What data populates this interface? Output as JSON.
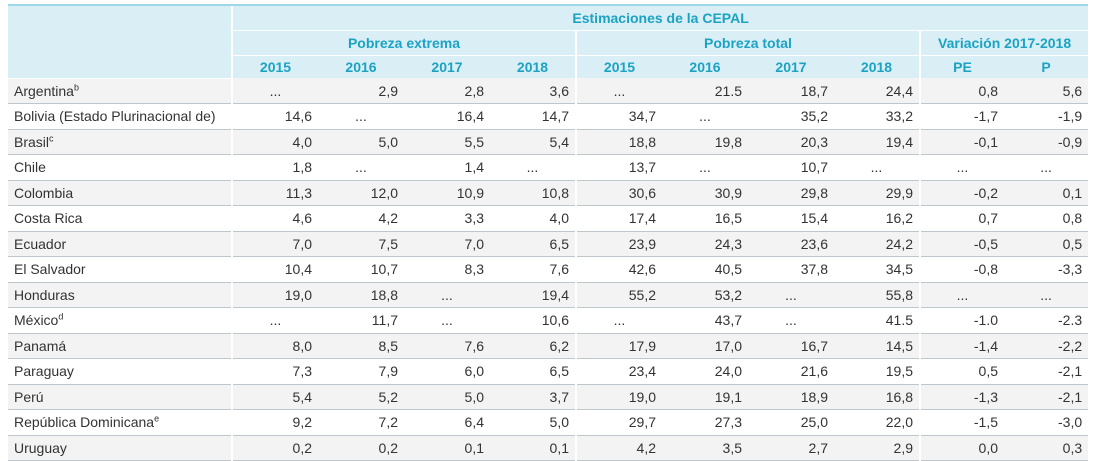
{
  "header": {
    "super_title": "Estimaciones de la CEPAL",
    "groups": [
      {
        "label": "Pobreza extrema"
      },
      {
        "label": "Pobreza total"
      },
      {
        "label": "Variación 2017-2018"
      }
    ],
    "years": [
      "2015",
      "2016",
      "2017",
      "2018",
      "2015",
      "2016",
      "2017",
      "2018",
      "PE",
      "P"
    ]
  },
  "rows": [
    {
      "country": "Argentina",
      "note": "b",
      "values": [
        "...",
        "2,9",
        "2,8",
        "3,6",
        "...",
        "21.5",
        "18,7",
        "24,4",
        "0,8",
        "5,6"
      ]
    },
    {
      "country": "Bolivia (Estado Plurinacional de)",
      "note": "",
      "values": [
        "14,6",
        "...",
        "16,4",
        "14,7",
        "34,7",
        "...",
        "35,2",
        "33,2",
        "-1,7",
        "-1,9"
      ]
    },
    {
      "country": "Brasil",
      "note": "c",
      "values": [
        "4,0",
        "5,0",
        "5,5",
        "5,4",
        "18,8",
        "19,8",
        "20,3",
        "19,4",
        "-0,1",
        "-0,9"
      ]
    },
    {
      "country": "Chile",
      "note": "",
      "values": [
        "1,8",
        "...",
        "1,4",
        "...",
        "13,7",
        "...",
        "10,7",
        "...",
        "...",
        "..."
      ]
    },
    {
      "country": "Colombia",
      "note": "",
      "values": [
        "11,3",
        "12,0",
        "10,9",
        "10,8",
        "30,6",
        "30,9",
        "29,8",
        "29,9",
        "-0,2",
        "0,1"
      ]
    },
    {
      "country": "Costa Rica",
      "note": "",
      "values": [
        "4,6",
        "4,2",
        "3,3",
        "4,0",
        "17,4",
        "16,5",
        "15,4",
        "16,2",
        "0,7",
        "0,8"
      ]
    },
    {
      "country": "Ecuador",
      "note": "",
      "values": [
        "7,0",
        "7,5",
        "7,0",
        "6,5",
        "23,9",
        "24,3",
        "23,6",
        "24,2",
        "-0,5",
        "0,5"
      ]
    },
    {
      "country": "El Salvador",
      "note": "",
      "values": [
        "10,4",
        "10,7",
        "8,3",
        "7,6",
        "42,6",
        "40,5",
        "37,8",
        "34,5",
        "-0,8",
        "-3,3"
      ]
    },
    {
      "country": "Honduras",
      "note": "",
      "values": [
        "19,0",
        "18,8",
        "...",
        "19,4",
        "55,2",
        "53,2",
        "...",
        "55,8",
        "...",
        "..."
      ]
    },
    {
      "country": "México",
      "note": "d",
      "values": [
        "...",
        "11,7",
        "...",
        "10,6",
        "...",
        "43,7",
        "...",
        "41.5",
        "-1.0",
        "-2.3"
      ]
    },
    {
      "country": "Panamá",
      "note": "",
      "values": [
        "8,0",
        "8,5",
        "7,6",
        "6,2",
        "17,9",
        "17,0",
        "16,7",
        "14,5",
        "-1,4",
        "-2,2"
      ]
    },
    {
      "country": "Paraguay",
      "note": "",
      "values": [
        "7,3",
        "7,9",
        "6,0",
        "6,5",
        "23,4",
        "24,0",
        "21,6",
        "19,5",
        "0,5",
        "-2,1"
      ]
    },
    {
      "country": "Perú",
      "note": "",
      "values": [
        "5,4",
        "5,2",
        "5,0",
        "3,7",
        "19,0",
        "19,1",
        "18,9",
        "16,8",
        "-1,3",
        "-2,1"
      ]
    },
    {
      "country": "República Dominicana",
      "note": "e",
      "values": [
        "9,2",
        "7,2",
        "6,4",
        "5,0",
        "29,7",
        "27,3",
        "25,0",
        "22,0",
        "-1,5",
        "-3,0"
      ]
    },
    {
      "country": "Uruguay",
      "note": "",
      "values": [
        "0,2",
        "0,2",
        "0,1",
        "0,1",
        "4,2",
        "3,5",
        "2,7",
        "2,9",
        "0,0",
        "0,3"
      ]
    }
  ]
}
